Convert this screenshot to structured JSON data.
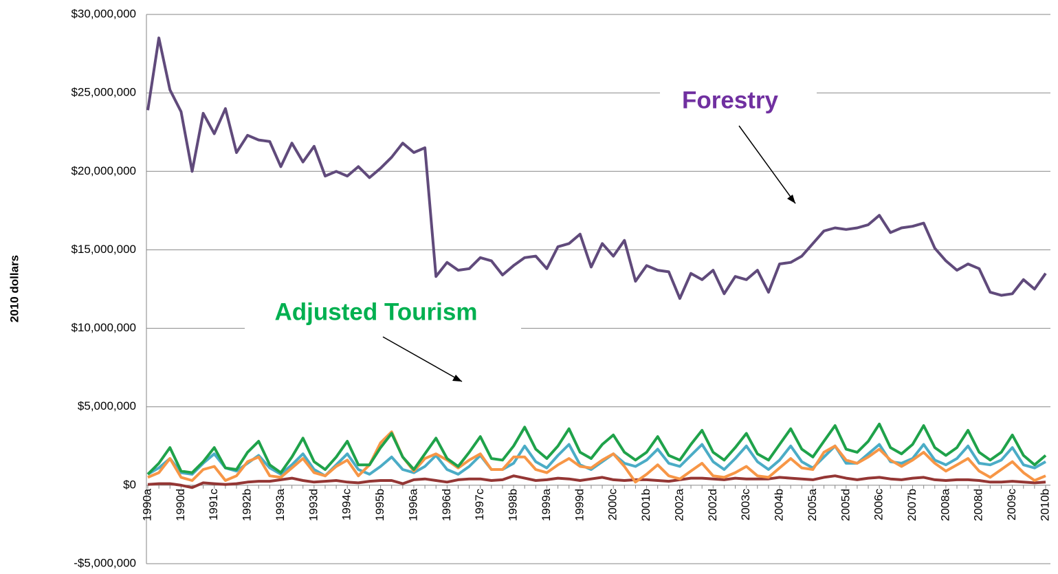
{
  "chart_data": {
    "type": "line",
    "ylabel": "2010 dollars",
    "annotations": [
      "Forestry",
      "Adjusted Tourism"
    ],
    "categories": [
      "1990a",
      null,
      null,
      "1990d",
      null,
      null,
      "1991c",
      null,
      null,
      "1992b",
      null,
      null,
      "1993a",
      null,
      null,
      "1993d",
      null,
      null,
      "1994c",
      null,
      null,
      "1995b",
      null,
      null,
      "1996a",
      null,
      null,
      "1996d",
      null,
      null,
      "1997c",
      null,
      null,
      "1998b",
      null,
      null,
      "1999a",
      null,
      null,
      "1999d",
      null,
      null,
      "2000c",
      null,
      null,
      "2001b",
      null,
      null,
      "2002a",
      null,
      null,
      "2002d",
      null,
      null,
      "2003c",
      null,
      null,
      "2004b",
      null,
      null,
      "2005a",
      null,
      null,
      "2005d",
      null,
      null,
      "2006c",
      null,
      null,
      "2007b",
      null,
      null,
      "2008a",
      null,
      null,
      "2008d",
      null,
      null,
      "2009c",
      null,
      null,
      "2010b"
    ],
    "series": [
      {
        "color": "#943634",
        "values": [
          50000,
          100000,
          100000,
          0,
          -150000,
          150000,
          100000,
          50000,
          100000,
          200000,
          250000,
          250000,
          350000,
          450000,
          300000,
          200000,
          250000,
          300000,
          200000,
          150000,
          250000,
          300000,
          300000,
          100000,
          350000,
          400000,
          300000,
          200000,
          350000,
          400000,
          400000,
          300000,
          350000,
          600000,
          450000,
          300000,
          350000,
          450000,
          400000,
          300000,
          400000,
          500000,
          350000,
          300000,
          350000,
          350000,
          300000,
          250000,
          350000,
          450000,
          450000,
          400000,
          350000,
          450000,
          400000,
          400000,
          400000,
          500000,
          450000,
          400000,
          350000,
          500000,
          600000,
          450000,
          350000,
          450000,
          500000,
          400000,
          350000,
          450000,
          500000,
          350000,
          300000,
          350000,
          350000,
          300000,
          200000,
          200000,
          250000,
          200000,
          150000,
          200000
        ]
      },
      {
        "color": "#4bacc6",
        "values": [
          700000,
          1100000,
          1700000,
          800000,
          700000,
          1400000,
          2000000,
          1100000,
          900000,
          1400000,
          1900000,
          1100000,
          700000,
          1300000,
          2000000,
          1000000,
          600000,
          1300000,
          2000000,
          1000000,
          700000,
          1200000,
          1800000,
          1000000,
          800000,
          1200000,
          1900000,
          1000000,
          700000,
          1200000,
          1900000,
          1000000,
          1000000,
          1400000,
          2500000,
          1500000,
          1100000,
          1900000,
          2600000,
          1300000,
          1000000,
          1500000,
          2000000,
          1400000,
          1200000,
          1600000,
          2300000,
          1400000,
          1200000,
          1900000,
          2600000,
          1500000,
          1000000,
          1700000,
          2500000,
          1500000,
          1000000,
          1600000,
          2500000,
          1500000,
          1100000,
          1800000,
          2500000,
          1400000,
          1400000,
          2000000,
          2600000,
          1500000,
          1400000,
          1700000,
          2600000,
          1600000,
          1300000,
          1700000,
          2500000,
          1400000,
          1300000,
          1600000,
          2400000,
          1300000,
          1100000,
          1500000
        ]
      },
      {
        "color": "#f79646",
        "values": [
          500000,
          800000,
          1700000,
          500000,
          300000,
          1000000,
          1200000,
          300000,
          600000,
          1500000,
          1800000,
          600000,
          500000,
          1100000,
          1700000,
          800000,
          600000,
          1200000,
          1600000,
          600000,
          1300000,
          2700000,
          3400000,
          1800000,
          900000,
          1700000,
          2000000,
          1600000,
          1100000,
          1600000,
          2000000,
          1000000,
          1000000,
          1800000,
          1800000,
          1000000,
          800000,
          1300000,
          1700000,
          1200000,
          1100000,
          1600000,
          2000000,
          1200000,
          200000,
          700000,
          1300000,
          600000,
          400000,
          900000,
          1400000,
          600000,
          500000,
          800000,
          1200000,
          600000,
          500000,
          1100000,
          1700000,
          1100000,
          1000000,
          2100000,
          2500000,
          1600000,
          1400000,
          1800000,
          2300000,
          1600000,
          1200000,
          1600000,
          2100000,
          1400000,
          900000,
          1300000,
          1700000,
          900000,
          500000,
          1000000,
          1500000,
          800000,
          300000,
          600000
        ]
      },
      {
        "color": "#1fa24a",
        "values": [
          700000,
          1400000,
          2400000,
          900000,
          800000,
          1500000,
          2400000,
          1100000,
          1000000,
          2100000,
          2800000,
          1300000,
          800000,
          1800000,
          3000000,
          1500000,
          1000000,
          1800000,
          2800000,
          1300000,
          1300000,
          2400000,
          3300000,
          1800000,
          1000000,
          2000000,
          3000000,
          1700000,
          1200000,
          2100000,
          3100000,
          1700000,
          1600000,
          2500000,
          3700000,
          2300000,
          1700000,
          2500000,
          3600000,
          2100000,
          1700000,
          2600000,
          3200000,
          2100000,
          1600000,
          2100000,
          3100000,
          1900000,
          1600000,
          2600000,
          3500000,
          2100000,
          1600000,
          2400000,
          3300000,
          2000000,
          1600000,
          2600000,
          3600000,
          2300000,
          1800000,
          2800000,
          3800000,
          2300000,
          2100000,
          2800000,
          3900000,
          2400000,
          2000000,
          2600000,
          3800000,
          2400000,
          1900000,
          2400000,
          3500000,
          2100000,
          1600000,
          2100000,
          3200000,
          1900000,
          1300000,
          1900000
        ]
      },
      {
        "color": "#604a7b",
        "values": [
          23900000,
          28500000,
          25200000,
          23800000,
          20000000,
          23700000,
          22400000,
          24000000,
          21200000,
          22300000,
          22000000,
          21900000,
          20300000,
          21800000,
          20600000,
          21600000,
          19700000,
          20000000,
          19700000,
          20300000,
          19600000,
          20200000,
          20900000,
          21800000,
          21200000,
          21500000,
          13300000,
          14200000,
          13700000,
          13800000,
          14500000,
          14300000,
          13400000,
          14000000,
          14500000,
          14600000,
          13800000,
          15200000,
          15400000,
          16000000,
          13900000,
          15400000,
          14600000,
          15600000,
          13000000,
          14000000,
          13700000,
          13600000,
          11900000,
          13500000,
          13100000,
          13700000,
          12200000,
          13300000,
          13100000,
          13700000,
          12300000,
          14100000,
          14200000,
          14600000,
          15400000,
          16200000,
          16400000,
          16300000,
          16400000,
          16600000,
          17200000,
          16100000,
          16400000,
          16500000,
          16700000,
          15100000,
          14300000,
          13700000,
          14100000,
          13800000,
          12300000,
          12100000,
          12200000,
          13100000,
          12500000,
          13500000
        ]
      }
    ],
    "ylim": [
      -5000000,
      30000000
    ],
    "yticks": [
      {
        "value": -5000000,
        "label": "-$5,000,000"
      },
      {
        "value": 0,
        "label": "$0"
      },
      {
        "value": 5000000,
        "label": "$5,000,000"
      },
      {
        "value": 10000000,
        "label": "$10,000,000"
      },
      {
        "value": 15000000,
        "label": "$15,000,000"
      },
      {
        "value": 20000000,
        "label": "$20,000,000"
      },
      {
        "value": 25000000,
        "label": "$25,000,000"
      },
      {
        "value": 30000000,
        "label": "$30,000,000"
      }
    ],
    "grid": true
  }
}
